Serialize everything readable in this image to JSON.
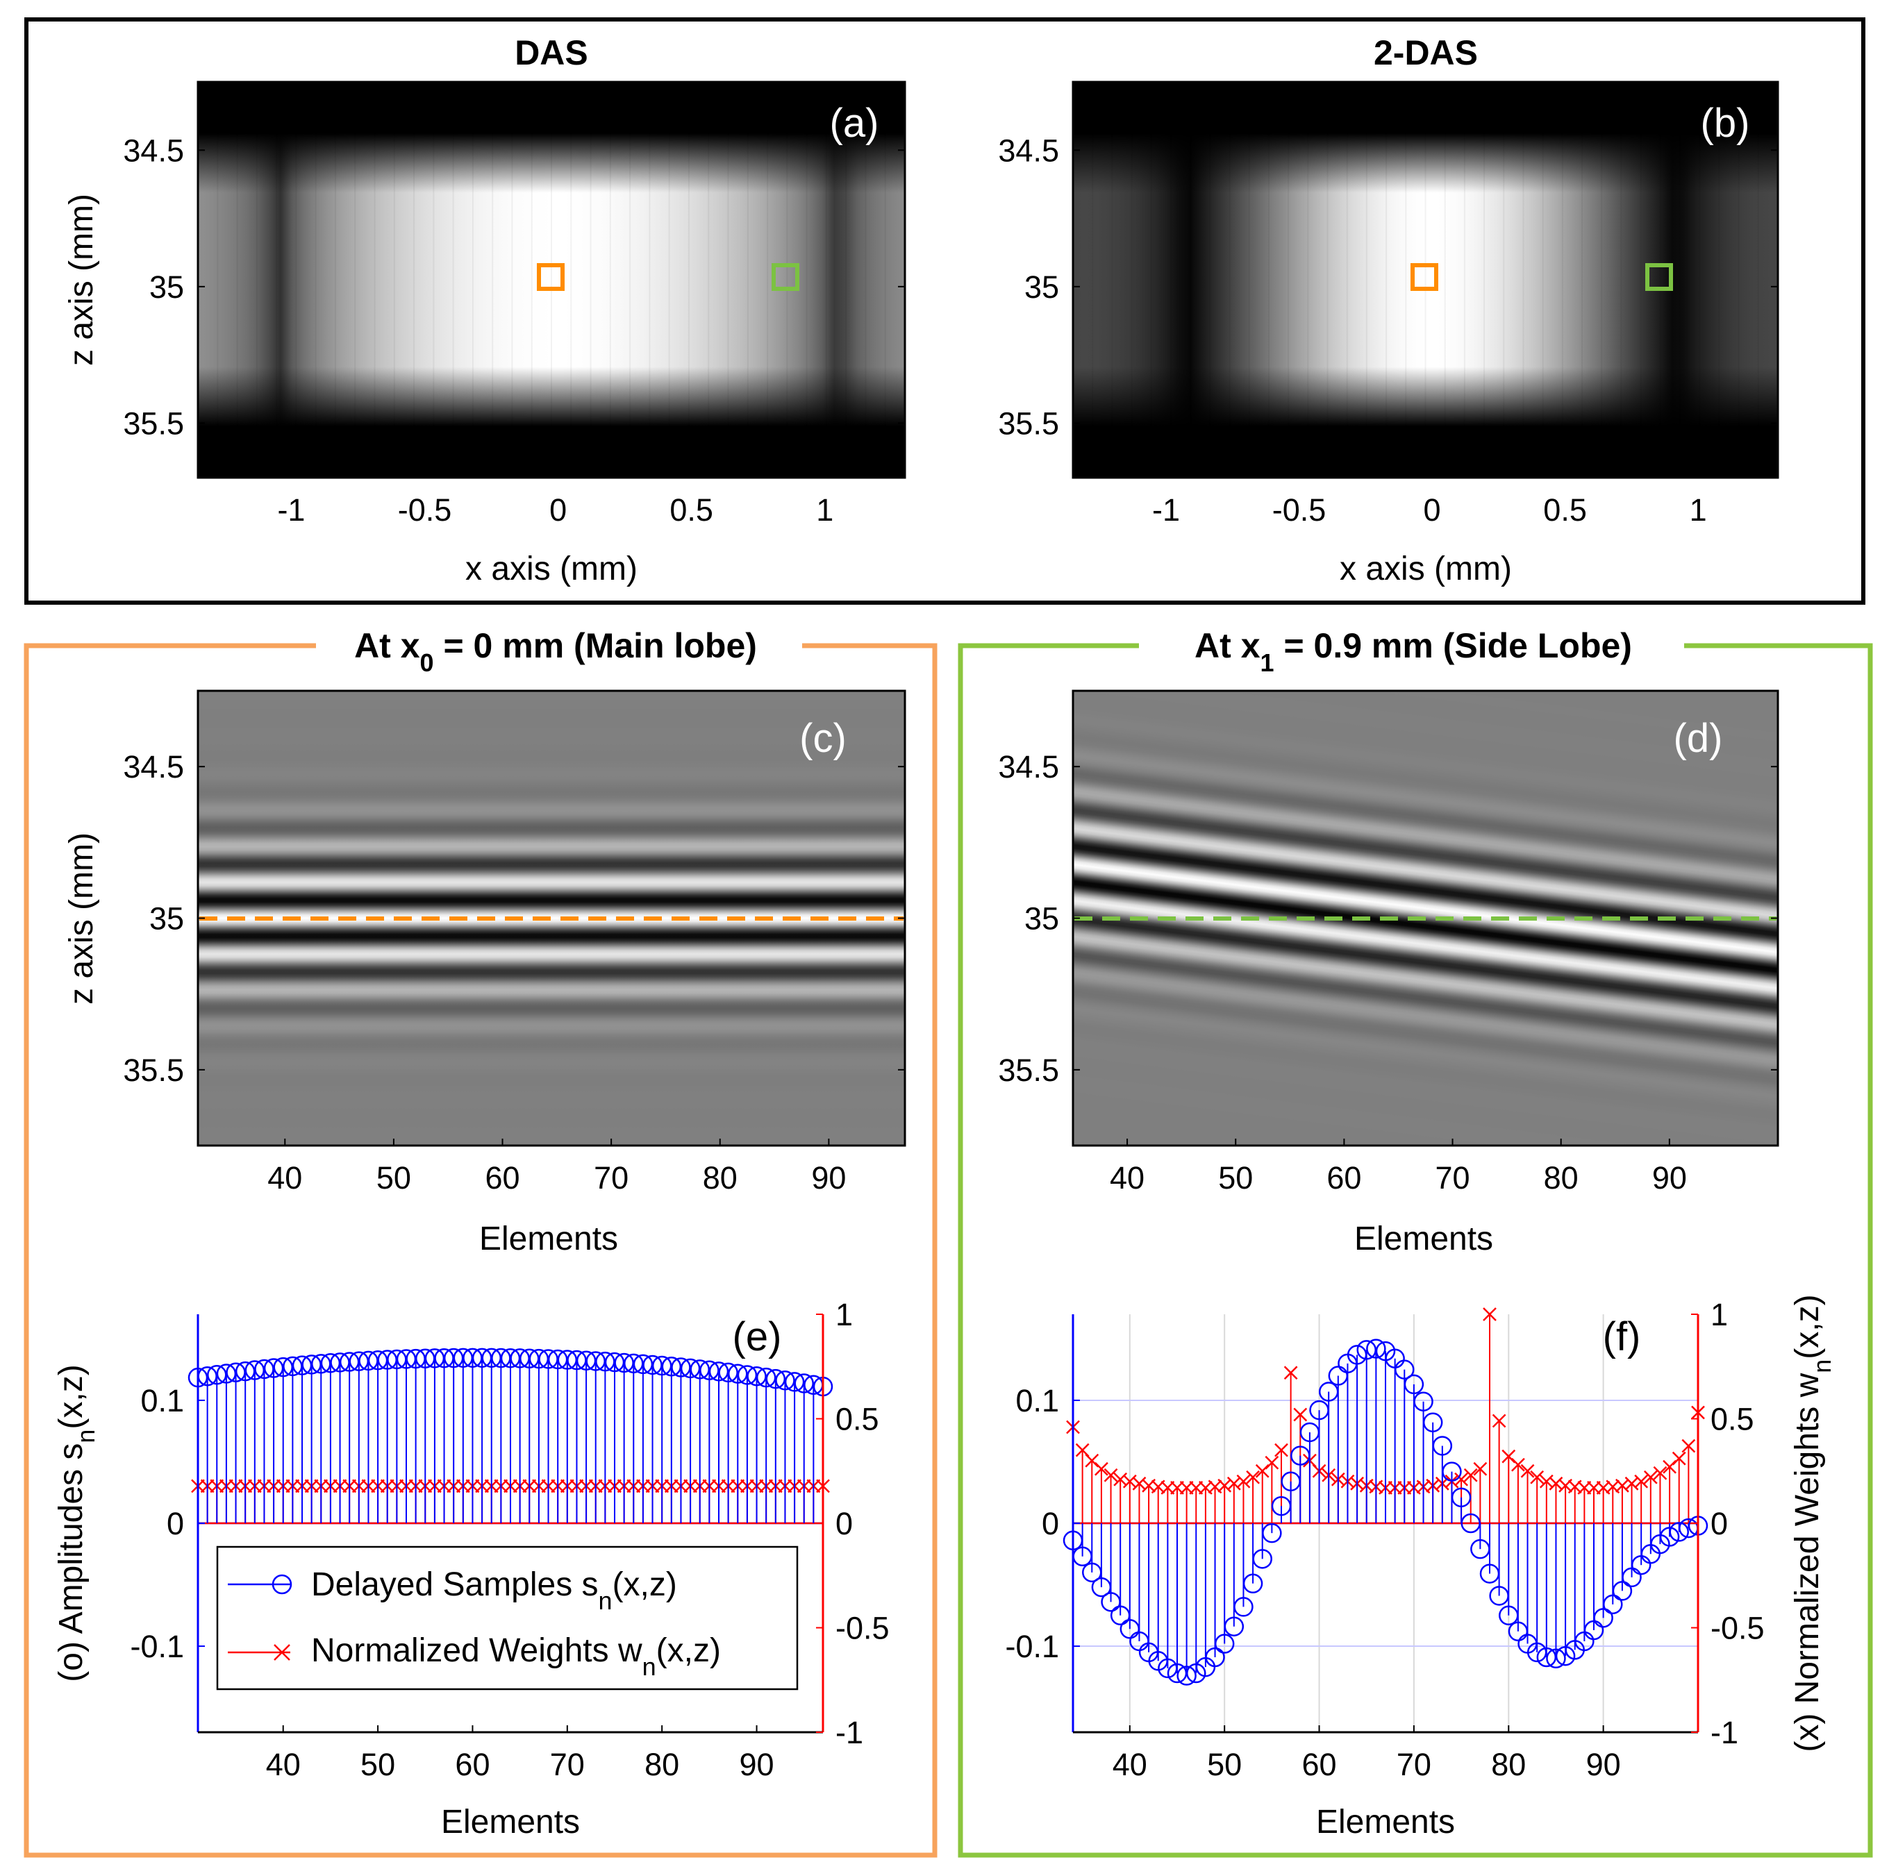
{
  "colors": {
    "main_lobe": "#f7a35c",
    "side_lobe": "#8cc63f",
    "marker_orange": "#ff8c00",
    "marker_green": "#7cc242",
    "amplitude_blue": "#0000ff",
    "weight_red": "#ff0000"
  },
  "section_titles": {
    "main_prefix": "At x",
    "main_sub": "0",
    "main_suffix": " = 0 mm (Main lobe)",
    "side_prefix": "At x",
    "side_sub": "1",
    "side_suffix": " = 0.9 mm (Side Lobe)"
  },
  "chart_data": [
    {
      "id": "a",
      "type": "heatmap",
      "title": "DAS",
      "panel_label": "(a)",
      "xlabel": "x axis (mm)",
      "ylabel": "z axis (mm)",
      "xlim": [
        -1.35,
        1.3
      ],
      "ylim": [
        35.7,
        34.25
      ],
      "xticks": [
        -1,
        -0.5,
        0,
        0.5,
        1
      ],
      "xticklabels": [
        "-1",
        "-0.5",
        "0",
        "0.5",
        "1"
      ],
      "yticks": [
        34.5,
        35,
        35.5
      ],
      "yticklabels": [
        "34.5",
        "35",
        "35.5"
      ],
      "colormap": "gray",
      "markers": [
        {
          "x": 0.0,
          "z": 35.0,
          "color": "orange"
        },
        {
          "x": 0.9,
          "z": 35.0,
          "color": "green"
        }
      ]
    },
    {
      "id": "b",
      "type": "heatmap",
      "title": "2-DAS",
      "panel_label": "(b)",
      "xlabel": "x axis (mm)",
      "ylabel": "",
      "xlim": [
        -1.35,
        1.3
      ],
      "ylim": [
        35.7,
        34.25
      ],
      "xticks": [
        -1,
        -0.5,
        0,
        0.5,
        1
      ],
      "xticklabels": [
        "-1",
        "-0.5",
        "0",
        "0.5",
        "1"
      ],
      "yticks": [
        34.5,
        35,
        35.5
      ],
      "yticklabels": [
        "34.5",
        "35",
        "35.5"
      ],
      "colormap": "gray",
      "markers": [
        {
          "x": 0.0,
          "z": 35.0,
          "color": "orange"
        },
        {
          "x": 0.9,
          "z": 35.0,
          "color": "green"
        }
      ]
    },
    {
      "id": "c",
      "type": "heatmap",
      "panel_label": "(c)",
      "xlabel": "Elements",
      "ylabel": "z axis (mm)",
      "xlim": [
        32,
        97
      ],
      "ylim": [
        35.75,
        34.25
      ],
      "xticks": [
        40,
        50,
        60,
        70,
        80,
        90
      ],
      "xticklabels": [
        "40",
        "50",
        "60",
        "70",
        "80",
        "90"
      ],
      "yticks": [
        34.5,
        35,
        35.5
      ],
      "yticklabels": [
        "34.5",
        "35",
        "35.5"
      ],
      "colormap": "gray",
      "reference_line_z": 35.0
    },
    {
      "id": "d",
      "type": "heatmap",
      "panel_label": "(d)",
      "xlabel": "Elements",
      "ylabel": "",
      "xlim": [
        35,
        100
      ],
      "ylim": [
        35.75,
        34.25
      ],
      "xticks": [
        40,
        50,
        60,
        70,
        80,
        90
      ],
      "xticklabels": [
        "40",
        "50",
        "60",
        "70",
        "80",
        "90"
      ],
      "yticks": [
        34.5,
        35,
        35.5
      ],
      "yticklabels": [
        "34.5",
        "35",
        "35.5"
      ],
      "colormap": "gray",
      "reference_line_z": 35.0
    },
    {
      "id": "e",
      "type": "stem",
      "panel_label": "(e)",
      "xlabel": "Elements",
      "ylabel_left": "(o) Amplitudes s",
      "ylabel_left_sub": "n",
      "ylabel_left_tail": "(x,z)",
      "xlim": [
        31,
        97
      ],
      "ylim_left": [
        -0.17,
        0.17
      ],
      "ylim_right": [
        -1,
        1
      ],
      "xticks": [
        40,
        50,
        60,
        70,
        80,
        90
      ],
      "xticklabels": [
        "40",
        "50",
        "60",
        "70",
        "80",
        "90"
      ],
      "yticks_left": [
        -0.1,
        0,
        0.1
      ],
      "yticklabels_left": [
        "-0.1",
        "0",
        "0.1"
      ],
      "yticks_right": [
        -1,
        -0.5,
        0,
        0.5,
        1
      ],
      "yticklabels_right": [
        "-1",
        "-0.5",
        "0",
        "0.5",
        "1"
      ],
      "grid": false,
      "legend": {
        "placement": "bottom-left",
        "items": [
          {
            "prefix": "Delayed Samples s",
            "sub": "n",
            "suffix": "(x,z)",
            "color": "blue",
            "marker": "circle"
          },
          {
            "prefix": "Normalized Weights w",
            "sub": "n",
            "suffix": "(x,z)",
            "color": "red",
            "marker": "x"
          }
        ]
      },
      "series": [
        {
          "name": "Delayed Samples",
          "axis": "left",
          "x": [
            31,
            32,
            33,
            34,
            35,
            36,
            37,
            38,
            39,
            40,
            41,
            42,
            43,
            44,
            45,
            46,
            47,
            48,
            49,
            50,
            51,
            52,
            53,
            54,
            55,
            56,
            57,
            58,
            59,
            60,
            61,
            62,
            63,
            64,
            65,
            66,
            67,
            68,
            69,
            70,
            71,
            72,
            73,
            74,
            75,
            76,
            77,
            78,
            79,
            80,
            81,
            82,
            83,
            84,
            85,
            86,
            87,
            88,
            89,
            90,
            91,
            92,
            93,
            94,
            95,
            96,
            97
          ],
          "values": [
            0.1185,
            0.1196,
            0.1207,
            0.1217,
            0.1227,
            0.1236,
            0.1245,
            0.1254,
            0.1262,
            0.127,
            0.1277,
            0.1284,
            0.1291,
            0.1297,
            0.1303,
            0.1308,
            0.1313,
            0.1318,
            0.1322,
            0.1326,
            0.133,
            0.1333,
            0.1336,
            0.1338,
            0.134,
            0.1342,
            0.1343,
            0.1344,
            0.1345,
            0.1345,
            0.1345,
            0.1345,
            0.1344,
            0.1343,
            0.1342,
            0.134,
            0.1338,
            0.1336,
            0.1333,
            0.133,
            0.1327,
            0.1323,
            0.1319,
            0.1315,
            0.131,
            0.1305,
            0.13,
            0.1294,
            0.1288,
            0.1282,
            0.1275,
            0.1268,
            0.126,
            0.1252,
            0.1244,
            0.1235,
            0.1226,
            0.1216,
            0.1206,
            0.1196,
            0.1185,
            0.1174,
            0.1162,
            0.115,
            0.1138,
            0.1125,
            0.1112
          ]
        },
        {
          "name": "Normalized Weights",
          "axis": "right",
          "x": [
            31,
            32,
            33,
            34,
            35,
            36,
            37,
            38,
            39,
            40,
            41,
            42,
            43,
            44,
            45,
            46,
            47,
            48,
            49,
            50,
            51,
            52,
            53,
            54,
            55,
            56,
            57,
            58,
            59,
            60,
            61,
            62,
            63,
            64,
            65,
            66,
            67,
            68,
            69,
            70,
            71,
            72,
            73,
            74,
            75,
            76,
            77,
            78,
            79,
            80,
            81,
            82,
            83,
            84,
            85,
            86,
            87,
            88,
            89,
            90,
            91,
            92,
            93,
            94,
            95,
            96,
            97
          ],
          "values": [
            0.178,
            0.178,
            0.178,
            0.178,
            0.178,
            0.178,
            0.178,
            0.178,
            0.178,
            0.178,
            0.178,
            0.178,
            0.178,
            0.178,
            0.178,
            0.178,
            0.178,
            0.178,
            0.178,
            0.178,
            0.178,
            0.178,
            0.178,
            0.178,
            0.178,
            0.178,
            0.178,
            0.178,
            0.178,
            0.178,
            0.178,
            0.178,
            0.178,
            0.178,
            0.178,
            0.178,
            0.178,
            0.178,
            0.178,
            0.178,
            0.178,
            0.178,
            0.178,
            0.178,
            0.178,
            0.178,
            0.178,
            0.178,
            0.178,
            0.178,
            0.178,
            0.178,
            0.178,
            0.178,
            0.178,
            0.178,
            0.178,
            0.178,
            0.178,
            0.178,
            0.178,
            0.178,
            0.178,
            0.178,
            0.178,
            0.178,
            0.178
          ]
        }
      ]
    },
    {
      "id": "f",
      "type": "stem",
      "panel_label": "(f)",
      "xlabel": "Elements",
      "ylabel_right": "(x) Normalized Weights w",
      "ylabel_right_sub": "n",
      "ylabel_right_tail": "(x,z)",
      "xlim": [
        34,
        100
      ],
      "ylim_left": [
        -0.17,
        0.17
      ],
      "ylim_right": [
        -1,
        1
      ],
      "xticks": [
        40,
        50,
        60,
        70,
        80,
        90
      ],
      "xticklabels": [
        "40",
        "50",
        "60",
        "70",
        "80",
        "90"
      ],
      "yticks_left": [
        -0.1,
        0,
        0.1
      ],
      "yticklabels_left": [
        "-0.1",
        "0",
        "0.1"
      ],
      "yticks_right": [
        -1,
        -0.5,
        0,
        0.5,
        1
      ],
      "yticklabels_right": [
        "-1",
        "-0.5",
        "0",
        "0.5",
        "1"
      ],
      "grid": true,
      "series": [
        {
          "name": "Delayed Samples",
          "axis": "left",
          "x": [
            34,
            35,
            36,
            37,
            38,
            39,
            40,
            41,
            42,
            43,
            44,
            45,
            46,
            47,
            48,
            49,
            50,
            51,
            52,
            53,
            54,
            55,
            56,
            57,
            58,
            59,
            60,
            61,
            62,
            63,
            64,
            65,
            66,
            67,
            68,
            69,
            70,
            71,
            72,
            73,
            74,
            75,
            76,
            77,
            78,
            79,
            80,
            81,
            82,
            83,
            84,
            85,
            86,
            87,
            88,
            89,
            90,
            91,
            92,
            93,
            94,
            95,
            96,
            97,
            98,
            99,
            100
          ],
          "values": [
            -0.014,
            -0.027,
            -0.04,
            -0.052,
            -0.064,
            -0.075,
            -0.086,
            -0.096,
            -0.105,
            -0.112,
            -0.118,
            -0.122,
            -0.124,
            -0.122,
            -0.117,
            -0.109,
            -0.098,
            -0.084,
            -0.068,
            -0.049,
            -0.029,
            -0.008,
            0.014,
            0.034,
            0.055,
            0.074,
            0.092,
            0.107,
            0.12,
            0.13,
            0.137,
            0.141,
            0.142,
            0.14,
            0.134,
            0.125,
            0.113,
            0.099,
            0.082,
            0.063,
            0.042,
            0.021,
            0.0,
            -0.021,
            -0.041,
            -0.059,
            -0.075,
            -0.088,
            -0.098,
            -0.105,
            -0.109,
            -0.11,
            -0.108,
            -0.103,
            -0.096,
            -0.087,
            -0.077,
            -0.066,
            -0.055,
            -0.044,
            -0.034,
            -0.025,
            -0.017,
            -0.011,
            -0.007,
            -0.004,
            -0.002
          ]
        },
        {
          "name": "Normalized Weights",
          "axis": "right",
          "x": [
            34,
            35,
            36,
            37,
            38,
            39,
            40,
            41,
            42,
            43,
            44,
            45,
            46,
            47,
            48,
            49,
            50,
            51,
            52,
            53,
            54,
            55,
            56,
            57,
            58,
            59,
            60,
            61,
            62,
            63,
            64,
            65,
            66,
            67,
            68,
            69,
            70,
            71,
            72,
            73,
            74,
            75,
            76,
            77,
            78,
            79,
            80,
            81,
            82,
            83,
            84,
            85,
            86,
            87,
            88,
            89,
            90,
            91,
            92,
            93,
            94,
            95,
            96,
            97,
            98,
            99,
            100
          ],
          "values": [
            0.46,
            0.35,
            0.3,
            0.26,
            0.23,
            0.21,
            0.2,
            0.19,
            0.18,
            0.175,
            0.17,
            0.17,
            0.17,
            0.17,
            0.17,
            0.175,
            0.18,
            0.19,
            0.2,
            0.22,
            0.25,
            0.29,
            0.35,
            0.72,
            0.52,
            0.3,
            0.25,
            0.23,
            0.21,
            0.2,
            0.19,
            0.18,
            0.175,
            0.17,
            0.17,
            0.17,
            0.17,
            0.175,
            0.18,
            0.19,
            0.2,
            0.21,
            0.23,
            0.26,
            1.0,
            0.49,
            0.32,
            0.28,
            0.25,
            0.22,
            0.2,
            0.19,
            0.18,
            0.175,
            0.17,
            0.17,
            0.17,
            0.175,
            0.18,
            0.19,
            0.2,
            0.22,
            0.24,
            0.27,
            0.31,
            0.37,
            0.53
          ]
        }
      ]
    }
  ]
}
